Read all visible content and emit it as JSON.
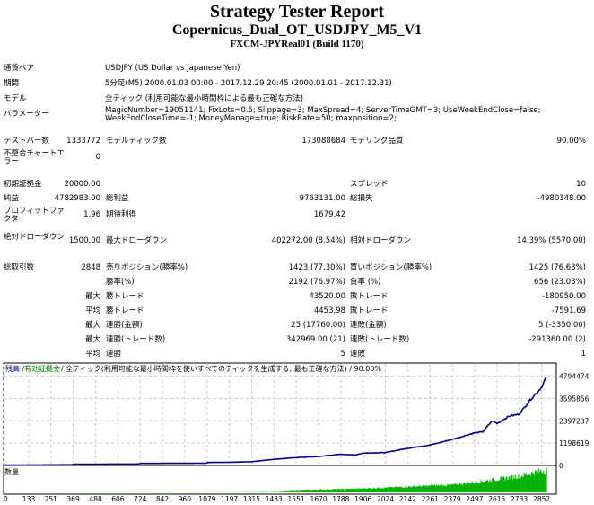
{
  "header": {
    "title": "Strategy Tester Report",
    "ea_name": "Copernicus_Dual_OT_USDJPY_M5_V1",
    "server": "FXCM-JPYReal01 (Build 1170)"
  },
  "info": [
    {
      "label": "通貨ペア",
      "value": "USDJPY (US Dollar vs Japanese Yen)"
    },
    {
      "label": "期間",
      "value": "5分足(M5) 2000.01.03 00:00 - 2017.12.29 20:45 (2000.01.01 - 2017.12.31)"
    },
    {
      "label": "モデル",
      "value": "全ティック (利用可能な最小時間枠による最も正確な方法)"
    },
    {
      "label": "パラメーター",
      "value": "MagicNumber=19051141; FixLots=0.5; Slippage=3; MaxSpread=4; ServerTimeGMT=3; UseWeekEndClose=false; WeekEndCloseTime=-1; MoneyManage=true; RiskRate=50; maxposition=2;"
    }
  ],
  "stats": [
    {
      "l1": "テストバー数",
      "v1": "1333772",
      "l2": "モデルティック数",
      "v2": "173088684",
      "l3": "モデリング品質",
      "v3": "90.00%"
    },
    {
      "l1": "不整合チャートエラー",
      "v1": "0",
      "l2": "",
      "v2": "",
      "l3": "",
      "v3": ""
    },
    {
      "l1": "初期証拠金",
      "v1": "20000.00",
      "l2": "",
      "v2": "",
      "l3": "スプレッド",
      "v3": "10"
    },
    {
      "l1": "純益",
      "v1": "4782983.00",
      "l2": "総利益",
      "v2": "9763131.00",
      "l3": "総損失",
      "v3": "-4980148.00"
    },
    {
      "l1": "プロフィットファクタ",
      "v1": "1.96",
      "l2": "期待利得",
      "v2": "1679.42",
      "l3": "",
      "v3": ""
    },
    {
      "l1": "絶対ドローダウン",
      "v1": "1500.00",
      "l2": "最大ドローダウン",
      "v2": "402272.00 (8.54%)",
      "l3": "相対ドローダウン",
      "v3": "14.39% (5570.00)"
    },
    {
      "l1": "総取引数",
      "v1": "2848",
      "l2": "売りポジション(勝率%)",
      "v2": "1423 (77.30%)",
      "l3": "買いポジション(勝率%)",
      "v3": "1425 (76.63%)"
    },
    {
      "l1": "",
      "v1": "",
      "l2": "勝率(%)",
      "v2": "2192 (76.97%)",
      "l3": "負率 (%)",
      "v3": "656 (23.03%)"
    },
    {
      "l1": "",
      "v1": "最大",
      "l2": "勝トレード",
      "v2": "43520.00",
      "l3": "敗トレード",
      "v3": "-180950.00"
    },
    {
      "l1": "",
      "v1": "平均",
      "l2": "勝トレード",
      "v2": "4453.98",
      "l3": "敗トレード",
      "v3": "-7591.69"
    },
    {
      "l1": "",
      "v1": "最大",
      "l2": "連勝(金額)",
      "v2": "25 (17760.00)",
      "l3": "連敗(金額)",
      "v3": "5 (-3350.00)"
    },
    {
      "l1": "",
      "v1": "最大",
      "l2": "連勝(トレード数)",
      "v2": "342969.00 (21)",
      "l3": "連敗(トレード数)",
      "v3": "-291360.00 (2)"
    },
    {
      "l1": "",
      "v1": "平均",
      "l2": "連勝",
      "v2": "5",
      "l3": "連敗",
      "v3": "1"
    }
  ],
  "chart_data": {
    "type": "line",
    "legend": {
      "balance": "残高",
      "equity": "有効証拠金",
      "model": "全ティック(利用可能な最小時間枠を使いすべてのティックを生成する, 最も正確な方法)",
      "quality": "90.00%"
    },
    "volume_label": "数量",
    "x_ticks": [
      0,
      133,
      251,
      369,
      488,
      606,
      724,
      842,
      960,
      1079,
      1197,
      1315,
      1433,
      1551,
      1670,
      1788,
      1906,
      2024,
      2142,
      2261,
      2379,
      2497,
      2615,
      2733,
      2852
    ],
    "y_ticks": [
      0,
      1198619,
      2397237,
      3595856,
      4794474
    ],
    "xlim": [
      0,
      2930
    ],
    "ylim": [
      0,
      5450000
    ],
    "grid": true,
    "colors": {
      "balance": "#00008b",
      "equity": "#008000",
      "volume": "#00b000",
      "grid": "#c8c8c8"
    },
    "balance": [
      [
        0,
        20000
      ],
      [
        369,
        40000
      ],
      [
        370,
        70000
      ],
      [
        724,
        80000
      ],
      [
        725,
        110000
      ],
      [
        1079,
        120000
      ],
      [
        1080,
        160000
      ],
      [
        1197,
        170000
      ],
      [
        1315,
        200000
      ],
      [
        1433,
        330000
      ],
      [
        1551,
        420000
      ],
      [
        1670,
        480000
      ],
      [
        1788,
        600000
      ],
      [
        1860,
        560000
      ],
      [
        1906,
        660000
      ],
      [
        2024,
        690000
      ],
      [
        2142,
        920000
      ],
      [
        2261,
        1100000
      ],
      [
        2379,
        1400000
      ],
      [
        2497,
        1750000
      ],
      [
        2540,
        1800000
      ],
      [
        2590,
        2400000
      ],
      [
        2615,
        2250000
      ],
      [
        2680,
        2650000
      ],
      [
        2733,
        2750000
      ],
      [
        2790,
        3500000
      ],
      [
        2852,
        4200000
      ],
      [
        2878,
        4790000
      ]
    ],
    "volume": [
      [
        0,
        0
      ],
      [
        1433,
        0.05
      ],
      [
        1551,
        0.1
      ],
      [
        1906,
        0.17
      ],
      [
        2142,
        0.25
      ],
      [
        2379,
        0.33
      ],
      [
        2497,
        0.45
      ],
      [
        2615,
        0.58
      ],
      [
        2733,
        0.72
      ],
      [
        2878,
        1.0
      ]
    ]
  }
}
